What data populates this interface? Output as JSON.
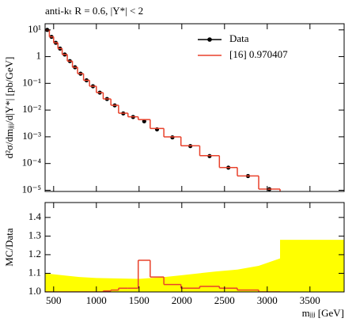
{
  "chart_data": [
    {
      "type": "histogram",
      "title": "anti-kₜ R = 0.6, |Y*| < 2",
      "y_label": "d²σ/dmⱼⱼⱼ/d|Y*| [pb/GeV]",
      "log_y": true,
      "legend": "upper right",
      "bins": [
        400,
        450,
        500,
        550,
        600,
        660,
        720,
        780,
        850,
        920,
        1000,
        1080,
        1170,
        1260,
        1370,
        1490,
        1630,
        1790,
        1990,
        2210,
        2440,
        2650,
        2900,
        3150
      ],
      "series": [
        {
          "name": "Data",
          "color": "#000000",
          "style": "points",
          "values": [
            10,
            5.5,
            3.3,
            2.0,
            1.2,
            0.68,
            0.4,
            0.23,
            0.13,
            0.078,
            0.045,
            0.026,
            0.015,
            0.0075,
            0.0055,
            0.0038,
            0.0019,
            0.00095,
            0.00045,
            0.00019,
            7e-05,
            3.4e-05,
            1.1e-05
          ]
        },
        {
          "name": "[16] 0.970407",
          "color": "#e8412b",
          "style": "step",
          "values": [
            10,
            5.5,
            3.3,
            2.0,
            1.2,
            0.68,
            0.4,
            0.23,
            0.13,
            0.078,
            0.045,
            0.0261,
            0.01515,
            0.00765,
            0.0056,
            0.0044,
            0.00205,
            0.00099,
            0.00046,
            0.000196,
            7.1e-05,
            3.43e-05,
            1.1e-05
          ]
        }
      ],
      "xlim": [
        400,
        3900
      ],
      "xticks": [
        500,
        1000,
        1500,
        2000,
        2500,
        3000,
        3500
      ],
      "ylim": [
        9e-06,
        17
      ],
      "yticks": [
        {
          "value": 1e-05,
          "label": "10⁻⁵"
        },
        {
          "value": 0.0001,
          "label": "10⁻⁴"
        },
        {
          "value": 0.001,
          "label": "10⁻³"
        },
        {
          "value": 0.01,
          "label": "10⁻²"
        },
        {
          "value": 0.1,
          "label": "10⁻¹"
        },
        1,
        {
          "value": 10,
          "label": "10¹"
        }
      ]
    },
    {
      "type": "histogram",
      "y_label": "MC/Data",
      "x_label": "mⱼⱼⱼ [GeV]",
      "log_y": false,
      "bins": [
        400,
        450,
        500,
        550,
        600,
        660,
        720,
        780,
        850,
        920,
        1000,
        1080,
        1170,
        1260,
        1370,
        1490,
        1630,
        1790,
        1990,
        2210,
        2440,
        2650,
        2900,
        3150
      ],
      "series": [
        {
          "color": "#e8412b",
          "style": "step",
          "values": [
            1.0,
            1.0,
            1.0,
            1.0,
            1.0,
            1.0,
            1.0,
            1.0,
            1.0,
            1.0,
            1.0,
            1.005,
            1.01,
            1.02,
            1.02,
            1.17,
            1.08,
            1.04,
            1.02,
            1.03,
            1.02,
            1.01,
            1.0
          ]
        }
      ],
      "band": {
        "color": "#ffff00",
        "x": [
          400,
          600,
          800,
          1000,
          1500,
          1800,
          2000,
          2200,
          2400,
          2650,
          2900,
          3150,
          3150,
          3900
        ],
        "upper": [
          1.1,
          1.09,
          1.08,
          1.075,
          1.07,
          1.08,
          1.09,
          1.1,
          1.11,
          1.12,
          1.14,
          1.18,
          1.28,
          1.28
        ]
      },
      "xlim": [
        400,
        3900
      ],
      "xticks": [
        500,
        1000,
        1500,
        2000,
        2500,
        3000,
        3500
      ],
      "ylim": [
        1.0,
        1.48
      ],
      "yticks": [
        {
          "value": 1,
          "label": "1.0"
        },
        1.1,
        1.2,
        1.3,
        1.4
      ]
    }
  ]
}
